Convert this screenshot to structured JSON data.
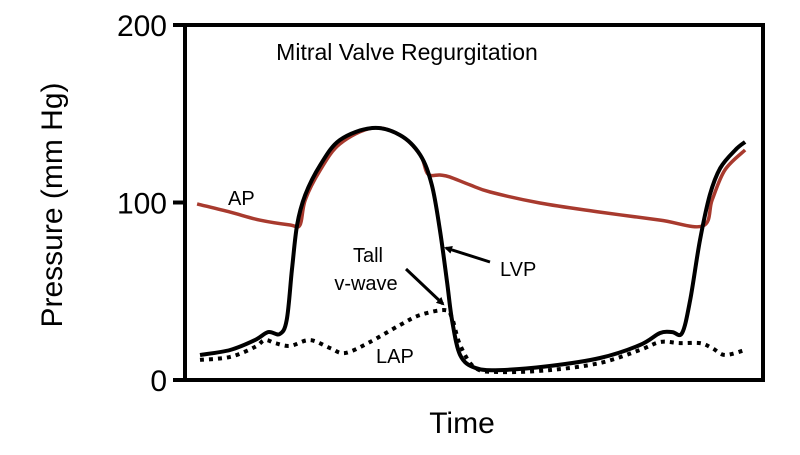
{
  "chart_data": {
    "type": "line",
    "title": "Mitral Valve Regurgitation",
    "xlabel": "Time",
    "ylabel": "Pressure (mm Hg)",
    "ylim": [
      0,
      200
    ],
    "yticks": [
      "0",
      "100",
      "200"
    ],
    "xlim": [
      0,
      100
    ],
    "grid": false,
    "colors": {
      "AP": "#a83a2e",
      "LVP": "#000000",
      "LAP": "#000000"
    },
    "series": [
      {
        "name": "AP",
        "style": "solid",
        "points": [
          [
            2.1,
            99.2
          ],
          [
            7.8,
            94.6
          ],
          [
            12.9,
            90.1
          ],
          [
            18.2,
            87.3
          ],
          [
            19.9,
            87.3
          ],
          [
            20.8,
            101.4
          ],
          [
            23.4,
            118.3
          ],
          [
            26.8,
            133.0
          ],
          [
            32.4,
            142.0
          ],
          [
            37.2,
            138.0
          ],
          [
            40.7,
            126.8
          ],
          [
            42.0,
            116.1
          ],
          [
            44.1,
            115.5
          ],
          [
            45.8,
            114.4
          ],
          [
            49.3,
            109.9
          ],
          [
            52.8,
            105.9
          ],
          [
            61.4,
            99.7
          ],
          [
            71.8,
            94.6
          ],
          [
            82.2,
            90.1
          ],
          [
            89.6,
            86.8
          ],
          [
            91.2,
            101.4
          ],
          [
            93.4,
            118.3
          ],
          [
            96.9,
            129.6
          ]
        ]
      },
      {
        "name": "LVP",
        "style": "solid",
        "points": [
          [
            2.6,
            14.1
          ],
          [
            7.8,
            16.9
          ],
          [
            12.1,
            22.5
          ],
          [
            14.4,
            27.0
          ],
          [
            16.4,
            25.9
          ],
          [
            17.6,
            33.8
          ],
          [
            18.5,
            62.0
          ],
          [
            19.4,
            87.3
          ],
          [
            20.8,
            104.2
          ],
          [
            23.4,
            121.1
          ],
          [
            26.8,
            135.2
          ],
          [
            32.4,
            142.0
          ],
          [
            37.2,
            138.0
          ],
          [
            40.7,
            126.8
          ],
          [
            42.7,
            109.9
          ],
          [
            44.1,
            84.5
          ],
          [
            45.3,
            56.3
          ],
          [
            46.2,
            33.8
          ],
          [
            47.6,
            14.1
          ],
          [
            50.2,
            6.8
          ],
          [
            54.5,
            5.6
          ],
          [
            63.1,
            7.9
          ],
          [
            71.8,
            12.4
          ],
          [
            78.7,
            19.7
          ],
          [
            82.2,
            26.5
          ],
          [
            84.3,
            27.0
          ],
          [
            86.0,
            26.5
          ],
          [
            87.4,
            45.1
          ],
          [
            89.1,
            78.9
          ],
          [
            90.8,
            104.2
          ],
          [
            92.6,
            119.4
          ],
          [
            95.2,
            129.6
          ],
          [
            96.9,
            134.1
          ]
        ]
      },
      {
        "name": "LAP",
        "style": "dotted",
        "points": [
          [
            2.6,
            11.3
          ],
          [
            7.8,
            13.0
          ],
          [
            12.1,
            18.6
          ],
          [
            13.8,
            22.5
          ],
          [
            15.6,
            20.8
          ],
          [
            18.2,
            19.2
          ],
          [
            21.6,
            22.5
          ],
          [
            25.1,
            18.0
          ],
          [
            27.7,
            15.2
          ],
          [
            32.0,
            21.4
          ],
          [
            37.2,
            31.0
          ],
          [
            40.7,
            36.6
          ],
          [
            45.0,
            39.4
          ],
          [
            46.2,
            34.9
          ],
          [
            47.6,
            19.7
          ],
          [
            50.2,
            6.8
          ],
          [
            54.5,
            4.5
          ],
          [
            63.1,
            5.6
          ],
          [
            71.8,
            9.6
          ],
          [
            78.7,
            16.9
          ],
          [
            82.2,
            21.4
          ],
          [
            85.6,
            20.8
          ],
          [
            89.1,
            20.8
          ],
          [
            91.2,
            18.0
          ],
          [
            93.4,
            14.1
          ],
          [
            96.9,
            16.9
          ]
        ]
      }
    ],
    "annotations": {
      "ap": "AP",
      "tall": "Tall",
      "vwave": "v-wave",
      "lvp": "LVP",
      "lap": "LAP"
    }
  }
}
